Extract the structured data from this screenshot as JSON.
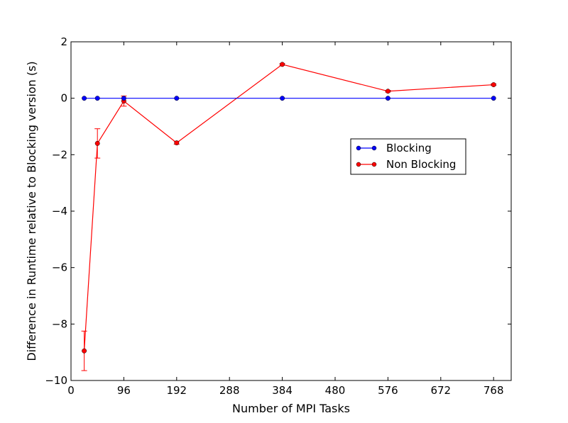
{
  "chart_data": {
    "type": "line",
    "xlabel": "Number of MPI Tasks",
    "ylabel": "Difference in Runtime relative to Blocking version (s)",
    "xlim": [
      0,
      800
    ],
    "ylim": [
      -10,
      2
    ],
    "xticks": [
      0,
      96,
      192,
      288,
      384,
      480,
      576,
      672,
      768
    ],
    "yticks": [
      2,
      0,
      -2,
      -4,
      -6,
      -8,
      -10
    ],
    "ytick_labels": [
      "2",
      "0",
      "−2",
      "−4",
      "−6",
      "−8",
      "−10"
    ],
    "legend_position": "center-right",
    "series": [
      {
        "name": "Blocking",
        "color": "#0000ff",
        "x": [
          24,
          48,
          96,
          192,
          384,
          576,
          768
        ],
        "y": [
          0,
          0,
          0,
          0,
          0,
          0,
          0
        ],
        "err": [
          0,
          0,
          0,
          0,
          0,
          0,
          0
        ]
      },
      {
        "name": "Non Blocking",
        "color": "#ff0000",
        "x": [
          24,
          48,
          96,
          192,
          384,
          576,
          768
        ],
        "y": [
          -8.95,
          -1.6,
          -0.1,
          -1.58,
          1.2,
          0.25,
          0.48
        ],
        "err": [
          0.7,
          0.52,
          0.18,
          0.05,
          0.03,
          0.03,
          0.03
        ]
      }
    ]
  }
}
